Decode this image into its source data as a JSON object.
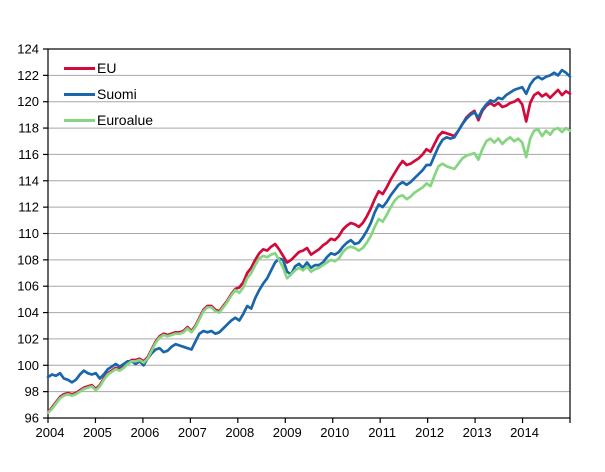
{
  "chart_data": {
    "type": "line",
    "title": "",
    "xlabel": "",
    "ylabel": "",
    "ylim": [
      96,
      124
    ],
    "y_ticks": [
      96,
      98,
      100,
      102,
      104,
      106,
      108,
      110,
      112,
      114,
      116,
      118,
      120,
      122,
      124
    ],
    "x_tick_labels": [
      "2004",
      "2005",
      "2006",
      "2007",
      "2008",
      "2009",
      "2010",
      "2011",
      "2012",
      "2013",
      "2014"
    ],
    "x_range_months": 132,
    "grid": true,
    "legend_position": "top-left",
    "colors": {
      "grid": "#a6a6a6",
      "axis": "#000000",
      "background": "#ffffff"
    },
    "series": [
      {
        "name": "EU",
        "color": "#d10a3c",
        "values": [
          96.4,
          96.8,
          97.2,
          97.6,
          97.8,
          97.9,
          97.8,
          97.9,
          98.1,
          98.3,
          98.4,
          98.5,
          98.2,
          98.5,
          99.0,
          99.4,
          99.6,
          99.8,
          99.7,
          99.9,
          100.2,
          100.4,
          100.4,
          100.5,
          100.3,
          100.6,
          101.2,
          101.8,
          102.2,
          102.4,
          102.3,
          102.4,
          102.5,
          102.5,
          102.6,
          102.9,
          102.6,
          103.0,
          103.6,
          104.2,
          104.5,
          104.5,
          104.2,
          104.1,
          104.5,
          104.9,
          105.4,
          105.8,
          105.9,
          106.3,
          107.0,
          107.4,
          108.0,
          108.5,
          108.8,
          108.7,
          109.0,
          109.2,
          108.8,
          108.3,
          107.8,
          108.0,
          108.3,
          108.6,
          108.7,
          108.9,
          108.4,
          108.6,
          108.8,
          109.1,
          109.3,
          109.6,
          109.5,
          109.8,
          110.3,
          110.6,
          110.8,
          110.7,
          110.5,
          110.8,
          111.3,
          111.9,
          112.6,
          113.2,
          113.0,
          113.5,
          114.1,
          114.6,
          115.1,
          115.5,
          115.2,
          115.3,
          115.5,
          115.7,
          116.0,
          116.4,
          116.2,
          116.8,
          117.4,
          117.7,
          117.6,
          117.5,
          117.4,
          117.8,
          118.3,
          118.8,
          119.1,
          119.3,
          118.6,
          119.3,
          119.7,
          119.9,
          119.7,
          119.9,
          119.6,
          119.7,
          119.9,
          120.0,
          120.2,
          119.8,
          118.5,
          119.9,
          120.5,
          120.7,
          120.4,
          120.6,
          120.3,
          120.6,
          120.9,
          120.5,
          120.8,
          120.6
        ]
      },
      {
        "name": "Suomi",
        "color": "#1a66ac",
        "values": [
          99.1,
          99.3,
          99.2,
          99.4,
          99.0,
          98.9,
          98.7,
          98.9,
          99.3,
          99.6,
          99.4,
          99.3,
          99.4,
          99.0,
          99.3,
          99.7,
          99.9,
          100.1,
          99.9,
          100.1,
          100.3,
          100.3,
          100.1,
          100.3,
          100.0,
          100.5,
          100.9,
          101.2,
          101.3,
          101.0,
          101.1,
          101.4,
          101.6,
          101.5,
          101.4,
          101.3,
          101.2,
          101.8,
          102.4,
          102.6,
          102.5,
          102.6,
          102.4,
          102.5,
          102.8,
          103.1,
          103.4,
          103.6,
          103.4,
          103.9,
          104.5,
          104.3,
          105.1,
          105.7,
          106.2,
          106.6,
          107.2,
          107.8,
          108.1,
          108.0,
          107.1,
          106.9,
          107.5,
          107.7,
          107.4,
          107.8,
          107.4,
          107.6,
          107.6,
          107.8,
          108.2,
          108.5,
          108.4,
          108.6,
          109.0,
          109.3,
          109.5,
          109.2,
          109.3,
          109.7,
          110.2,
          110.8,
          111.6,
          112.2,
          112.0,
          112.4,
          112.9,
          113.3,
          113.7,
          113.9,
          113.7,
          113.9,
          114.2,
          114.5,
          114.8,
          115.2,
          115.2,
          115.9,
          116.6,
          117.1,
          117.3,
          117.2,
          117.3,
          117.8,
          118.3,
          118.7,
          119.0,
          119.2,
          118.8,
          119.4,
          119.8,
          120.1,
          120.0,
          120.3,
          120.2,
          120.5,
          120.7,
          120.9,
          121.0,
          121.1,
          120.6,
          121.3,
          121.7,
          121.9,
          121.7,
          121.9,
          122.0,
          122.2,
          122.0,
          122.4,
          122.2,
          121.9
        ]
      },
      {
        "name": "Euroalue",
        "color": "#86d581",
        "values": [
          96.4,
          96.7,
          97.1,
          97.5,
          97.7,
          97.8,
          97.7,
          97.8,
          98.0,
          98.2,
          98.3,
          98.4,
          98.1,
          98.4,
          98.9,
          99.3,
          99.5,
          99.7,
          99.6,
          99.8,
          100.1,
          100.3,
          100.3,
          100.4,
          100.2,
          100.5,
          101.1,
          101.7,
          102.1,
          102.3,
          102.2,
          102.3,
          102.4,
          102.4,
          102.5,
          102.8,
          102.5,
          102.9,
          103.5,
          104.1,
          104.4,
          104.4,
          104.1,
          104.0,
          104.4,
          104.8,
          105.3,
          105.7,
          105.5,
          105.9,
          106.6,
          107.0,
          107.6,
          108.1,
          108.3,
          108.2,
          108.4,
          108.5,
          108.0,
          107.4,
          106.6,
          106.9,
          107.2,
          107.4,
          107.2,
          107.5,
          107.1,
          107.3,
          107.4,
          107.6,
          107.8,
          108.0,
          107.9,
          108.1,
          108.6,
          108.9,
          109.0,
          108.9,
          108.7,
          108.9,
          109.3,
          109.8,
          110.5,
          111.1,
          110.9,
          111.4,
          112.0,
          112.5,
          112.8,
          112.9,
          112.6,
          112.8,
          113.1,
          113.3,
          113.5,
          113.8,
          113.6,
          114.4,
          115.1,
          115.3,
          115.1,
          115.0,
          114.9,
          115.3,
          115.7,
          115.9,
          116.0,
          116.1,
          115.6,
          116.4,
          117.0,
          117.2,
          116.9,
          117.2,
          116.8,
          117.1,
          117.3,
          117.0,
          117.2,
          116.9,
          115.8,
          117.2,
          117.8,
          117.9,
          117.4,
          117.8,
          117.5,
          117.9,
          118.0,
          117.7,
          118.0,
          117.8
        ]
      }
    ]
  }
}
